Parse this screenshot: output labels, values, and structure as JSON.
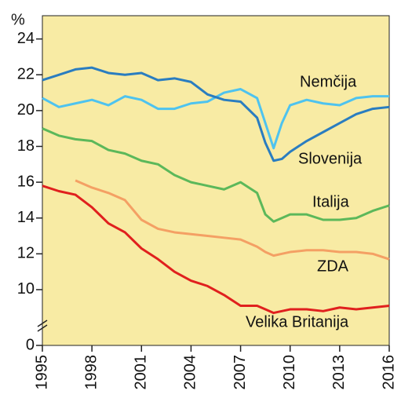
{
  "chart_data": {
    "type": "line",
    "y_label": "%",
    "x": [
      1995,
      1996,
      1997,
      1998,
      1999,
      2000,
      2001,
      2002,
      2003,
      2004,
      2005,
      2006,
      2007,
      2008,
      2008.5,
      2009,
      2009.5,
      2010,
      2011,
      2012,
      2013,
      2014,
      2015,
      2016
    ],
    "series": [
      {
        "name": "Nemčija",
        "color": "#4ec3ef",
        "values": [
          20.7,
          20.2,
          20.4,
          20.6,
          20.3,
          20.8,
          20.6,
          20.1,
          20.1,
          20.4,
          20.5,
          21.0,
          21.2,
          20.7,
          19.3,
          17.9,
          19.3,
          20.3,
          20.6,
          20.4,
          20.3,
          20.7,
          20.8,
          20.8
        ]
      },
      {
        "name": "Slovenija",
        "color": "#2a7dc0",
        "values": [
          21.7,
          22.0,
          22.3,
          22.4,
          22.1,
          22.0,
          22.1,
          21.7,
          21.8,
          21.6,
          20.9,
          20.6,
          20.5,
          19.6,
          18.2,
          17.2,
          17.3,
          17.7,
          18.3,
          18.8,
          19.3,
          19.8,
          20.1,
          20.2
        ]
      },
      {
        "name": "Italija",
        "color": "#5cb85a",
        "values": [
          19.0,
          18.6,
          18.4,
          18.3,
          17.8,
          17.6,
          17.2,
          17.0,
          16.4,
          16.0,
          15.8,
          15.6,
          16.0,
          15.4,
          14.2,
          13.8,
          14.0,
          14.2,
          14.2,
          13.9,
          13.9,
          14.0,
          14.4,
          14.7
        ]
      },
      {
        "name": "ZDA",
        "color": "#f4a064",
        "values": [
          null,
          null,
          16.1,
          15.7,
          15.4,
          15.0,
          13.9,
          13.4,
          13.2,
          13.1,
          13.0,
          12.9,
          12.8,
          12.4,
          12.1,
          11.9,
          12.0,
          12.1,
          12.2,
          12.2,
          12.1,
          12.1,
          12.0,
          11.7
        ]
      },
      {
        "name": "Velika Britanija",
        "color": "#e0201e",
        "values": [
          15.8,
          15.5,
          15.3,
          14.6,
          13.7,
          13.2,
          12.3,
          11.7,
          11.0,
          10.5,
          10.2,
          9.7,
          9.1,
          9.1,
          8.9,
          8.7,
          8.8,
          8.9,
          8.9,
          8.8,
          9.0,
          8.9,
          9.0,
          9.1
        ]
      }
    ],
    "xlim": [
      1995,
      2016
    ],
    "xticks": [
      1995,
      1998,
      2001,
      2004,
      2007,
      2010,
      2013,
      2016
    ],
    "ylim": [
      0,
      25.3
    ],
    "y_break": [
      0,
      8.2
    ],
    "yticks": [
      0,
      10,
      12,
      14,
      16,
      18,
      20,
      22,
      24
    ],
    "background": "#f8eba4"
  }
}
